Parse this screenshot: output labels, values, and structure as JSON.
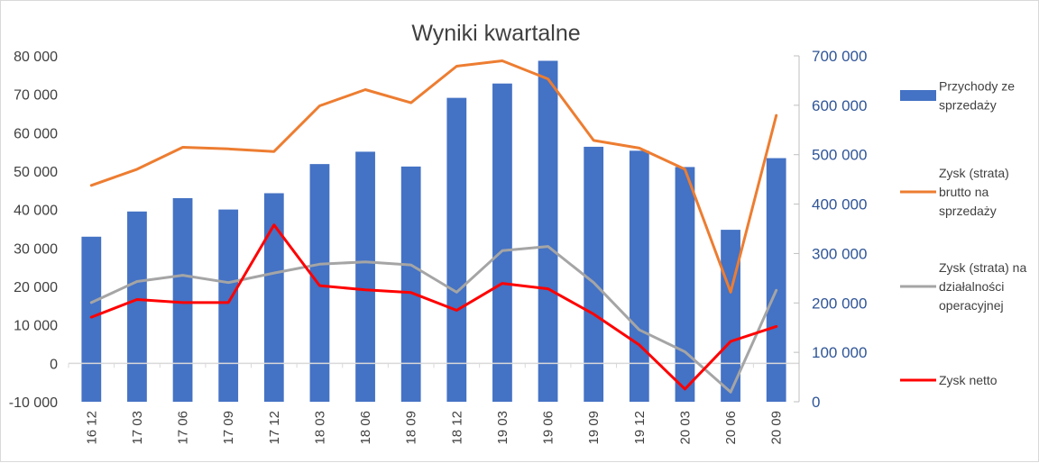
{
  "chart_data": {
    "type": "bar+line",
    "title": "Wyniki kwartalne",
    "categories": [
      "16 12",
      "17 03",
      "17 06",
      "17 09",
      "17 12",
      "18 03",
      "18 06",
      "18 09",
      "18 12",
      "19 03",
      "19 06",
      "19 09",
      "19 12",
      "20 03",
      "20 06",
      "20 09"
    ],
    "left_axis": {
      "min": -10000,
      "max": 80000,
      "step": 10000,
      "ticks": [
        "-10 000",
        "0",
        "10 000",
        "20 000",
        "30 000",
        "40 000",
        "50 000",
        "60 000",
        "70 000",
        "80 000"
      ]
    },
    "right_axis": {
      "min": 0,
      "max": 700000,
      "step": 100000,
      "ticks": [
        "0",
        "100 000",
        "200 000",
        "300 000",
        "400 000",
        "500 000",
        "600 000",
        "700 000"
      ]
    },
    "series": [
      {
        "name": "Przychody ze sprzedaży",
        "type": "bar",
        "axis": "right",
        "color": "#4472c4",
        "values": [
          334000,
          385000,
          412000,
          389000,
          422000,
          481000,
          506000,
          476000,
          615000,
          644000,
          690000,
          516000,
          508000,
          475000,
          348000,
          493000
        ]
      },
      {
        "name": "Zysk (strata) brutto na sprzedaży",
        "type": "line",
        "axis": "left",
        "color": "#ed7d31",
        "values": [
          46300,
          50500,
          56200,
          55800,
          55100,
          67000,
          71200,
          67800,
          77300,
          78700,
          74000,
          58000,
          56000,
          50500,
          18500,
          64500
        ]
      },
      {
        "name": "Zysk (strata) na działalności operacyjnej",
        "type": "line",
        "axis": "left",
        "color": "#a5a5a5",
        "values": [
          15800,
          21300,
          22900,
          21000,
          23500,
          25800,
          26400,
          25600,
          18500,
          29300,
          30400,
          21000,
          8700,
          3000,
          -7500,
          19000
        ]
      },
      {
        "name": "Zysk netto",
        "type": "line",
        "axis": "left",
        "color": "#ff0000",
        "values": [
          12000,
          16600,
          15800,
          15800,
          36000,
          20200,
          19100,
          18400,
          13800,
          20800,
          19400,
          12800,
          4800,
          -6700,
          5700,
          9600
        ]
      }
    ],
    "legend_position": "right",
    "grid": false
  }
}
